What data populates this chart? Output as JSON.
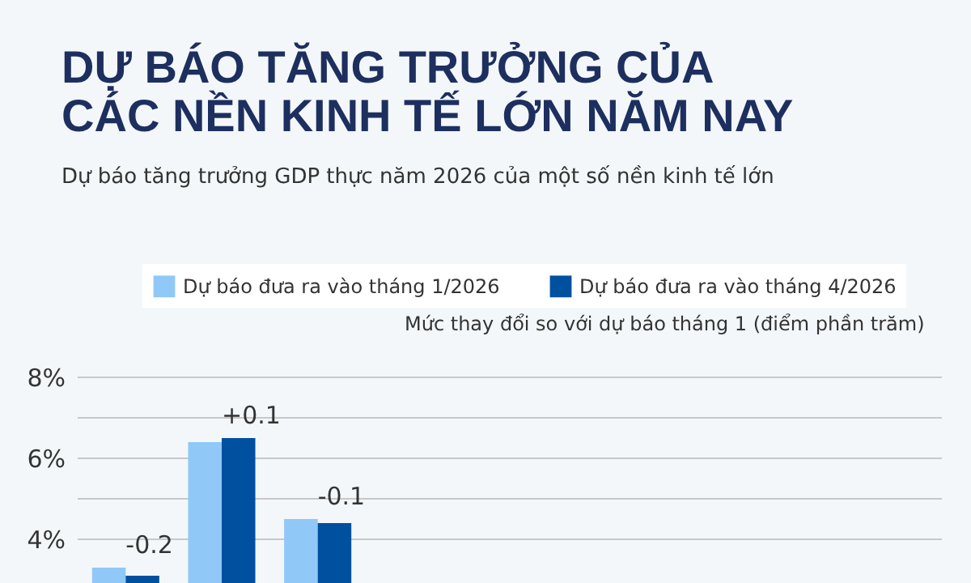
{
  "chart_data": {
    "type": "bar",
    "title": "DỰ BÁO TĂNG TRƯỞNG CỦA\nCÁC NỀN KINH TẾ LỚN NĂM NAY",
    "subtitle": "Dự báo tăng trưởng GDP thực năm 2026 của một số nền kinh tế lớn",
    "categories": [
      null,
      null,
      null,
      null,
      null,
      null,
      null,
      null,
      null
    ],
    "series": [
      {
        "name": "Dự báo đưa ra vào tháng 1/2026",
        "color": "#90c8f8",
        "values": [
          3.3,
          6.4,
          4.5,
          null,
          null,
          null,
          null,
          null,
          null
        ]
      },
      {
        "name": "Dự báo đưa ra vào tháng 4/2026",
        "color": "#0050a0",
        "values": [
          3.1,
          6.5,
          4.4,
          null,
          null,
          null,
          null,
          null,
          null
        ]
      }
    ],
    "annotations": [
      "Mức thay đổi so với dự báo tháng 1 (điểm phần trăm)",
      {
        "text": "-0.2",
        "y": 3.3
      },
      {
        "text": "+0.1",
        "y": 6.5
      },
      {
        "text": "-0.1",
        "y": 4.5
      }
    ],
    "ylim": [
      3,
      8
    ],
    "yticks": [
      {
        "value": 4,
        "label": "4%"
      },
      {
        "value": 5,
        "label": null
      },
      {
        "value": 6,
        "label": "6%"
      },
      {
        "value": 7,
        "label": null
      },
      {
        "value": 8,
        "label": "8%"
      }
    ],
    "grid": "y",
    "legend": "top",
    "tick_labels": "y"
  }
}
